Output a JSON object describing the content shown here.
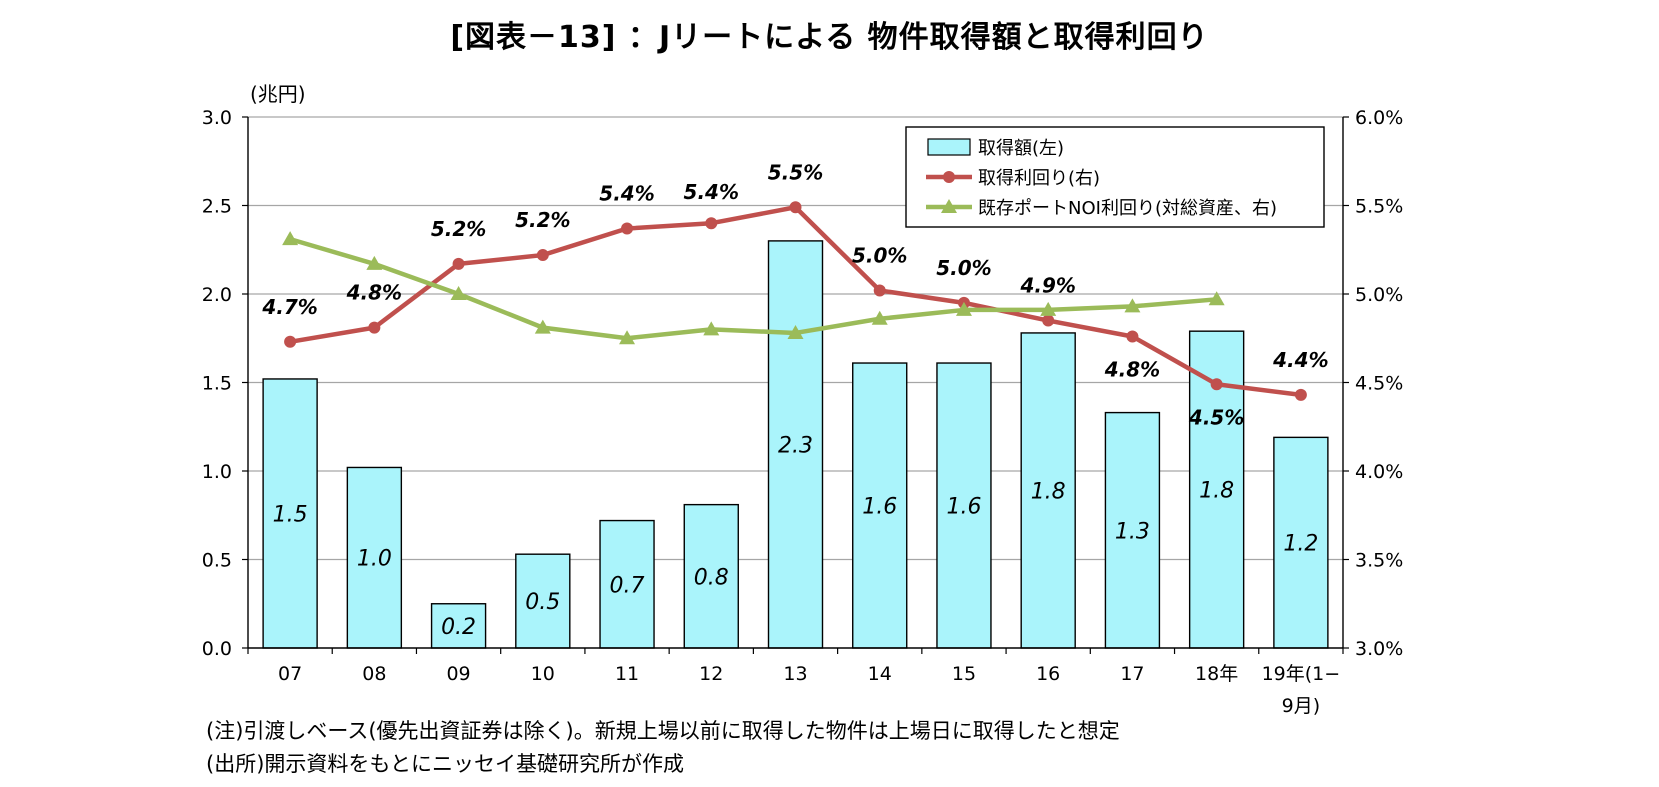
{
  "title": "[図表－13] ：Jリートによる 物件取得額と取得利回り",
  "notes": {
    "note1": "(注)引渡しベース(優先出資証券は除く)。新規上場以前に取得した物件は上場日に取得したと想定",
    "note2": "(出所)開示資料をもとにニッセイ基礎研究所が作成"
  },
  "chart_data": {
    "type": "bar",
    "categories": [
      "07",
      "08",
      "09",
      "10",
      "11",
      "12",
      "13",
      "14",
      "15",
      "16",
      "17",
      "18年",
      "19年(1−\n9月)"
    ],
    "left_axis": {
      "unit": "(兆円)",
      "min": 0,
      "max": 3.0,
      "ticks": [
        "0.0",
        "0.5",
        "1.0",
        "1.5",
        "2.0",
        "2.5",
        "3.0"
      ]
    },
    "right_axis": {
      "min": 3.0,
      "max": 6.0,
      "ticks": [
        "3.0%",
        "3.5%",
        "4.0%",
        "4.5%",
        "5.0%",
        "5.5%",
        "6.0%"
      ]
    },
    "grid": true,
    "legend_position": "top-right",
    "series": [
      {
        "name": "取得額(左)",
        "type": "bar",
        "axis": "left",
        "color": "#aaf4fb",
        "values": [
          1.52,
          1.02,
          0.25,
          0.53,
          0.72,
          0.81,
          2.3,
          1.61,
          1.61,
          1.78,
          1.33,
          1.79,
          1.19
        ],
        "labels": [
          "1.5",
          "1.0",
          "0.2",
          "0.5",
          "0.7",
          "0.8",
          "2.3",
          "1.6",
          "1.6",
          "1.8",
          "1.3",
          "1.8",
          "1.2"
        ]
      },
      {
        "name": "取得利回り(右)",
        "type": "line",
        "axis": "right",
        "color": "#c0504d",
        "marker": "circle",
        "values": [
          4.73,
          4.81,
          5.17,
          5.22,
          5.37,
          5.4,
          5.49,
          5.02,
          4.95,
          4.85,
          4.76,
          4.49,
          4.43
        ],
        "labels": [
          "4.7%",
          "4.8%",
          "5.2%",
          "5.2%",
          "5.4%",
          "5.4%",
          "5.5%",
          "5.0%",
          "5.0%",
          "4.9%",
          "4.8%",
          "4.5%",
          "4.4%"
        ]
      },
      {
        "name": "既存ポートNOI利回り(対総資産、右)",
        "type": "line",
        "axis": "right",
        "color": "#9bbb59",
        "marker": "triangle",
        "values": [
          5.31,
          5.17,
          5.0,
          4.81,
          4.75,
          4.8,
          4.78,
          4.86,
          4.91,
          4.91,
          4.93,
          4.97,
          null
        ]
      }
    ]
  }
}
